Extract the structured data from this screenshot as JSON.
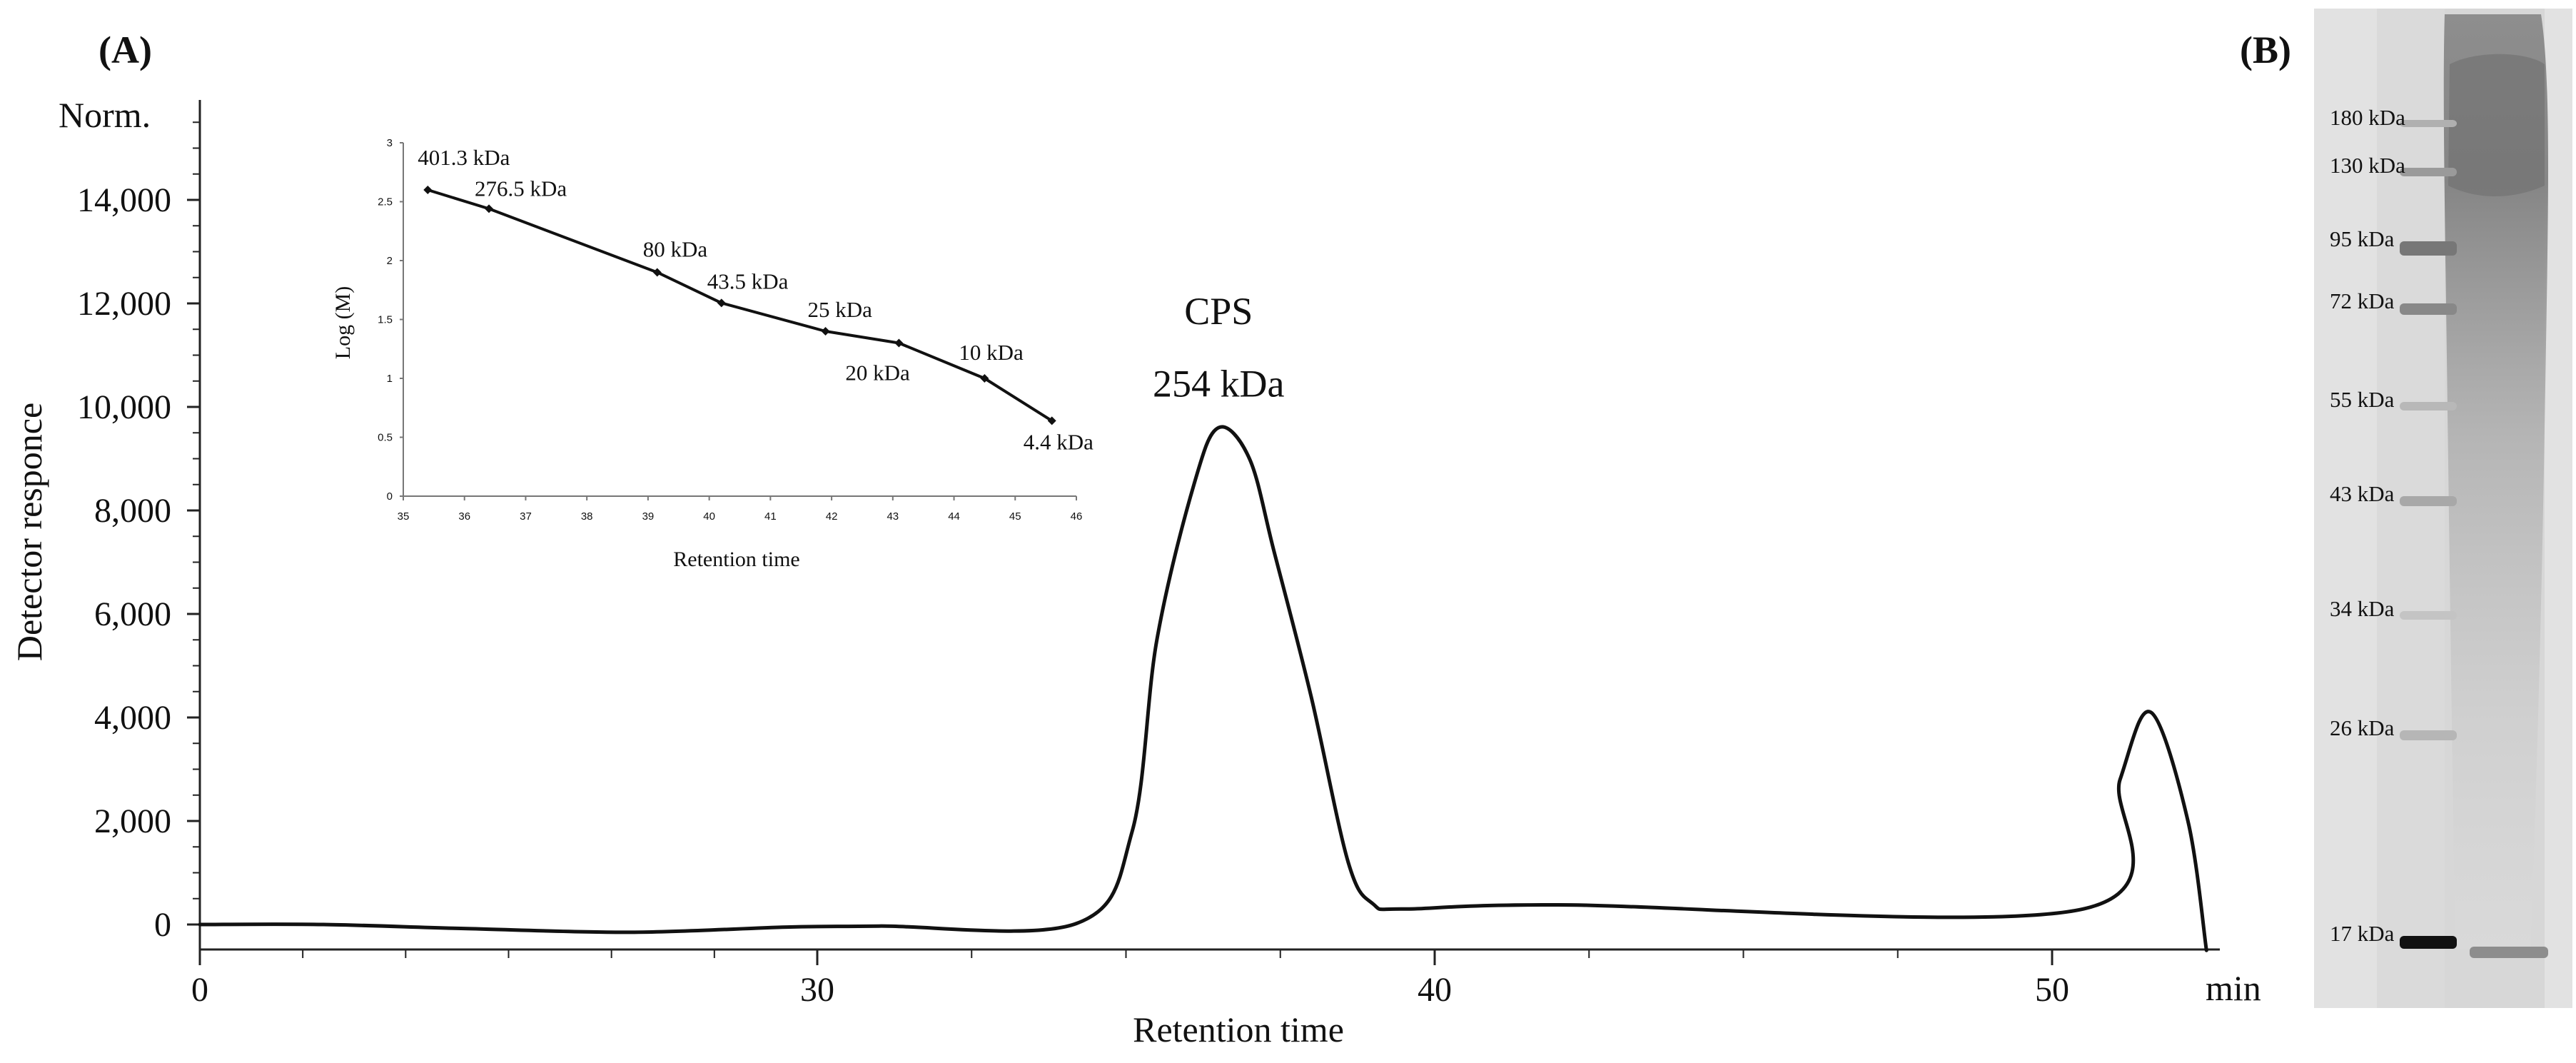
{
  "panels": {
    "a_label": "(A)",
    "b_label": "(B)"
  },
  "chart_data": [
    {
      "type": "line",
      "title": "",
      "xlabel": "Retention time",
      "ylabel": "Detector responce",
      "y_unit_label": "Norm.",
      "x_unit_label": "min",
      "xlim": [
        0,
        53
      ],
      "ylim": [
        -500,
        16000
      ],
      "x_ticks": [
        0,
        30,
        40,
        50
      ],
      "x_tick_labels": [
        "0",
        "30",
        "40",
        "50"
      ],
      "y_ticks": [
        0,
        2000,
        4000,
        6000,
        8000,
        10000,
        12000,
        14000
      ],
      "y_tick_labels": [
        "0",
        "2,000",
        "4,000",
        "6,000",
        "8,000",
        "10,000",
        "12,000",
        "14,000"
      ],
      "series": [
        {
          "name": "Detector response",
          "x": [
            0,
            6,
            13,
            21,
            28.5,
            31,
            34.2,
            35.1,
            35.5,
            36.1,
            36.5,
            37.0,
            37.4,
            38.0,
            38.6,
            39.0,
            39.5,
            42,
            50.5,
            51.1,
            51.6,
            52.2,
            52.5
          ],
          "y": [
            0,
            0,
            -80,
            -150,
            -50,
            -30,
            20,
            1800,
            5500,
            8500,
            9600,
            9000,
            7200,
            4400,
            1200,
            400,
            300,
            380,
            300,
            2800,
            4100,
            2000,
            -500
          ]
        }
      ],
      "annotations": [
        {
          "text": "CPS",
          "x": 36.5,
          "y": 11600
        },
        {
          "text": "254 kDa",
          "x": 36.5,
          "y": 10200
        }
      ]
    },
    {
      "type": "line",
      "title": "",
      "xlabel": "Retention time",
      "ylabel": "Log (M)",
      "xlim": [
        35,
        46
      ],
      "ylim": [
        0,
        3
      ],
      "x_ticks": [
        35,
        36,
        37,
        38,
        39,
        40,
        41,
        42,
        43,
        44,
        45,
        46
      ],
      "x_tick_labels": [
        "35",
        "36",
        "37",
        "38",
        "39",
        "40",
        "41",
        "42",
        "43",
        "44",
        "45",
        "46"
      ],
      "y_ticks": [
        0,
        0.5,
        1,
        1.5,
        2,
        2.5,
        3
      ],
      "y_tick_labels": [
        "0",
        "0.5",
        "1",
        "1.5",
        "2",
        "2.5",
        "3"
      ],
      "series": [
        {
          "name": "Calibration",
          "points": [
            {
              "x": 35.4,
              "y": 2.6,
              "label": "401.3 kDa"
            },
            {
              "x": 36.4,
              "y": 2.44,
              "label": "276.5 kDa"
            },
            {
              "x": 39.15,
              "y": 1.9,
              "label": "80 kDa"
            },
            {
              "x": 40.2,
              "y": 1.64,
              "label": "43.5 kDa"
            },
            {
              "x": 41.9,
              "y": 1.4,
              "label": "25 kDa"
            },
            {
              "x": 43.1,
              "y": 1.3,
              "label": "20 kDa"
            },
            {
              "x": 44.5,
              "y": 1.0,
              "label": "10 kDa"
            },
            {
              "x": 45.6,
              "y": 0.64,
              "label": "4.4 kDa"
            }
          ]
        }
      ]
    }
  ],
  "gel": {
    "ladder": [
      "180 kDa",
      "130 kDa",
      "95 kDa",
      "72 kDa",
      "55 kDa",
      "43 kDa",
      "34 kDa",
      "26 kDa",
      "17 kDa"
    ]
  }
}
